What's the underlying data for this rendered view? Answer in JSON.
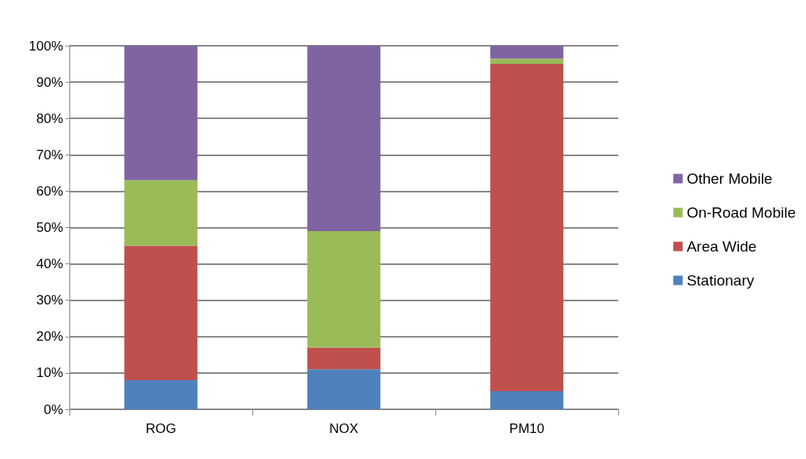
{
  "chart_data": {
    "type": "bar",
    "stacked": true,
    "categories": [
      "ROG",
      "NOX",
      "PM10"
    ],
    "series": [
      {
        "name": "Stationary",
        "color": "#4f81bd",
        "values": [
          8,
          11,
          5
        ]
      },
      {
        "name": "Area Wide",
        "color": "#c0504d",
        "values": [
          37,
          6,
          90
        ]
      },
      {
        "name": "On-Road Mobile",
        "color": "#9bbb59",
        "values": [
          18,
          32,
          1.5
        ]
      },
      {
        "name": "Other Mobile",
        "color": "#8064a2",
        "values": [
          37,
          51,
          3.5
        ]
      }
    ],
    "ylim": [
      0,
      100
    ],
    "yticks": [
      {
        "value": 0,
        "label": "0%"
      },
      {
        "value": 10,
        "label": "10%"
      },
      {
        "value": 20,
        "label": "20%"
      },
      {
        "value": 30,
        "label": "30%"
      },
      {
        "value": 40,
        "label": "40%"
      },
      {
        "value": 50,
        "label": "50%"
      },
      {
        "value": 60,
        "label": "60%"
      },
      {
        "value": 70,
        "label": "70%"
      },
      {
        "value": 80,
        "label": "80%"
      },
      {
        "value": 90,
        "label": "90%"
      },
      {
        "value": 100,
        "label": "100%"
      }
    ],
    "grid": "y",
    "legend": "right"
  }
}
